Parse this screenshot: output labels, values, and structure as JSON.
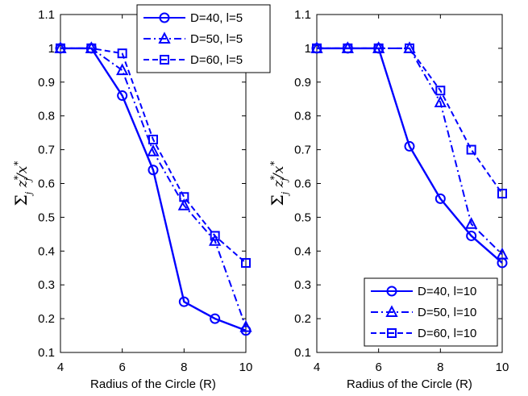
{
  "colors": {
    "series": "#0000ff",
    "axis": "#000000",
    "background": "#ffffff"
  },
  "chart_data": [
    {
      "type": "line",
      "xlabel": "Radius of the Circle (R)",
      "ylabel": "Σj z*j / x*",
      "xlim": [
        4,
        10
      ],
      "ylim": [
        0.1,
        1.1
      ],
      "xticks": [
        "4",
        "6",
        "8",
        "10"
      ],
      "yticks": [
        "0.1",
        "0.2",
        "0.3",
        "0.4",
        "0.5",
        "0.6",
        "0.7",
        "0.8",
        "0.9",
        "1",
        "1.1"
      ],
      "grid": false,
      "legend_position": "top-right",
      "x": [
        4,
        5,
        6,
        7,
        8,
        9,
        10
      ],
      "series": [
        {
          "name": "D=40, l=5",
          "marker": "circle",
          "dash": "solid",
          "values": [
            1.0,
            1.0,
            0.86,
            0.64,
            0.25,
            0.2,
            0.165
          ]
        },
        {
          "name": "D=50, l=5",
          "marker": "triangle",
          "dash": "dashdot",
          "values": [
            1.0,
            1.0,
            0.935,
            0.695,
            0.535,
            0.43,
            0.175
          ]
        },
        {
          "name": "D=60, l=5",
          "marker": "square",
          "dash": "dashed",
          "values": [
            1.0,
            1.0,
            0.985,
            0.73,
            0.56,
            0.445,
            0.365
          ]
        }
      ]
    },
    {
      "type": "line",
      "xlabel": "Radius of the Circle (R)",
      "ylabel": "Σj z*j / x*",
      "xlim": [
        4,
        10
      ],
      "ylim": [
        0.1,
        1.1
      ],
      "xticks": [
        "4",
        "6",
        "8",
        "10"
      ],
      "yticks": [
        "0.1",
        "0.2",
        "0.3",
        "0.4",
        "0.5",
        "0.6",
        "0.7",
        "0.8",
        "0.9",
        "1",
        "1.1"
      ],
      "grid": false,
      "legend_position": "bottom-right",
      "x": [
        4,
        5,
        6,
        7,
        8,
        9,
        10
      ],
      "series": [
        {
          "name": "D=40, l=10",
          "marker": "circle",
          "dash": "solid",
          "values": [
            1.0,
            1.0,
            1.0,
            0.71,
            0.555,
            0.445,
            0.365
          ]
        },
        {
          "name": "D=50, l=10",
          "marker": "triangle",
          "dash": "dashdot",
          "values": [
            1.0,
            1.0,
            1.0,
            1.0,
            0.84,
            0.48,
            0.39
          ]
        },
        {
          "name": "D=60, l=10",
          "marker": "square",
          "dash": "dashed",
          "values": [
            1.0,
            1.0,
            1.0,
            1.0,
            0.875,
            0.7,
            0.57
          ]
        }
      ]
    }
  ]
}
